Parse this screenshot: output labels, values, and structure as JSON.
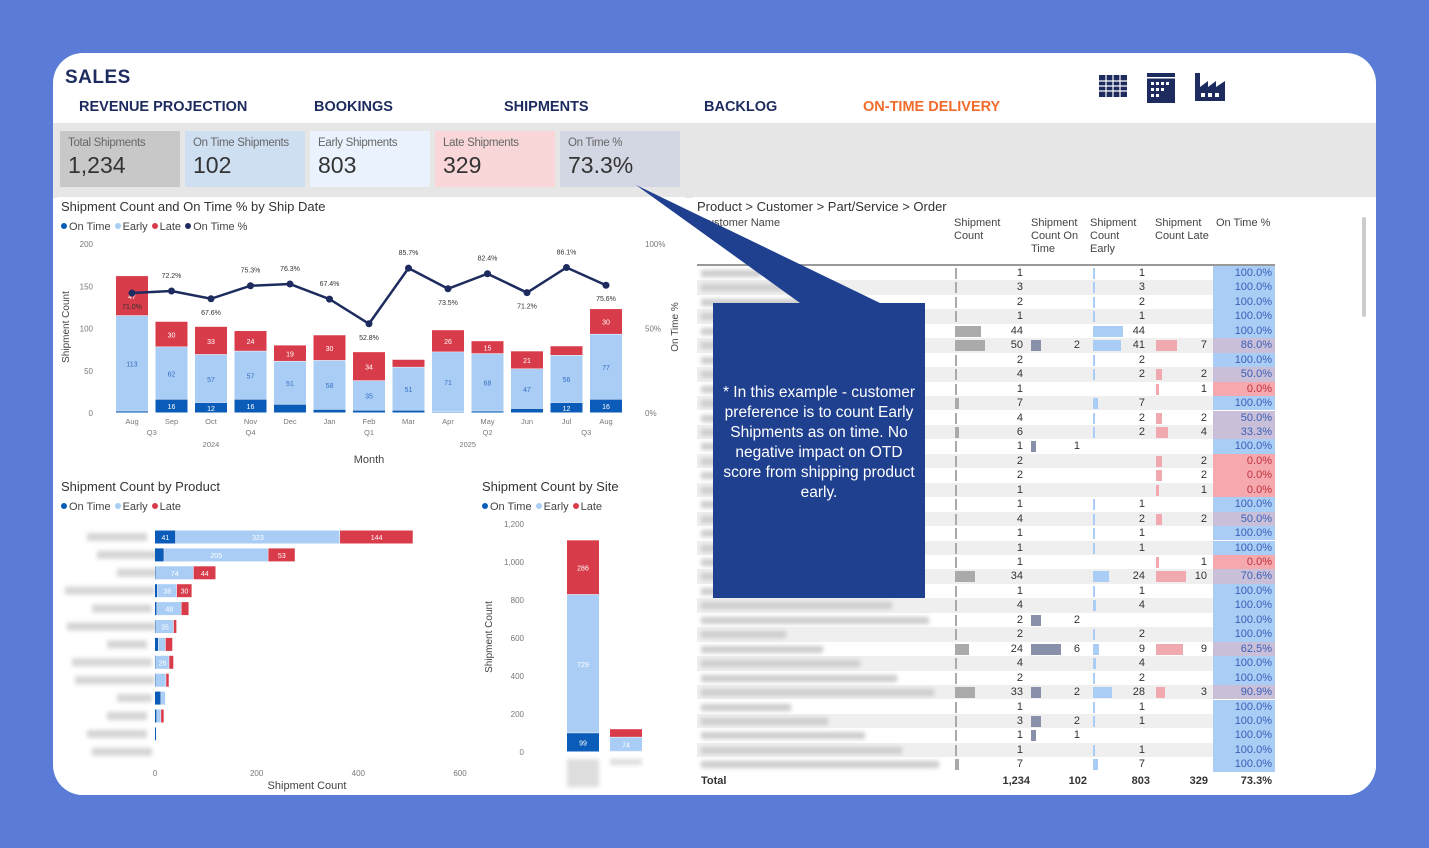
{
  "header": {
    "title": "SALES",
    "nav": [
      {
        "label": "REVENUE PROJECTION",
        "active": false
      },
      {
        "label": "BOOKINGS",
        "active": false
      },
      {
        "label": "SHIPMENTS",
        "active": false
      },
      {
        "label": "BACKLOG",
        "active": false
      },
      {
        "label": "ON-TIME DELIVERY",
        "active": true
      }
    ],
    "icons": [
      "table-icon",
      "calendar-icon",
      "factory-icon"
    ]
  },
  "kpis": [
    {
      "label": "Total Shipments",
      "value": "1,234",
      "color": "#c8c8c8"
    },
    {
      "label": "On Time Shipments",
      "value": "102",
      "color": "#cfdff2"
    },
    {
      "label": "Early Shipments",
      "value": "803",
      "color": "#eaf3fd"
    },
    {
      "label": "Late Shipments",
      "value": "329",
      "color": "#f9d6d8"
    },
    {
      "label": "On Time %",
      "value": "73.3%",
      "color": "#d3d6e3"
    }
  ],
  "colors": {
    "on_time": "#0b5cb8",
    "early": "#a9cdf5",
    "late": "#d83c4a",
    "on_time_pct": "#1d2b5e",
    "accent": "#f26b2a"
  },
  "chart_data": [
    {
      "type": "bar+line",
      "title": "Shipment Count and On Time % by Ship Date",
      "legend": [
        "On Time",
        "Early",
        "Late",
        "On Time %"
      ],
      "xlabel": "Month",
      "ylabel": "Shipment Count",
      "y2label": "On Time %",
      "ylim": [
        0,
        200
      ],
      "y2lim": [
        0,
        100
      ],
      "yticks": [
        "0",
        "50",
        "100",
        "150",
        "200"
      ],
      "y2ticks": [
        "0%",
        "50%",
        "100%"
      ],
      "categories": [
        "Aug",
        "Sep",
        "Oct",
        "Nov",
        "Dec",
        "Jan",
        "Feb",
        "Mar",
        "Apr",
        "May",
        "Jun",
        "Jul",
        "Aug"
      ],
      "quarters": [
        {
          "label": "Q3",
          "span": 2
        },
        {
          "label": "Q4",
          "span": 3
        },
        {
          "label": "Q1",
          "span": 3
        },
        {
          "label": "Q2",
          "span": 3
        },
        {
          "label": "Q3",
          "span": 2
        }
      ],
      "years": [
        {
          "label": "2024",
          "span": 5
        },
        {
          "label": "2025",
          "span": 8
        }
      ],
      "series": [
        {
          "name": "On Time",
          "values": [
            2,
            16,
            12,
            16,
            10,
            4,
            3,
            3,
            1,
            2,
            5,
            12,
            16
          ]
        },
        {
          "name": "Early",
          "values": [
            113,
            62,
            57,
            57,
            51,
            58,
            35,
            51,
            71,
            68,
            47,
            56,
            77
          ]
        },
        {
          "name": "Late",
          "values": [
            47,
            30,
            33,
            24,
            19,
            30,
            34,
            9,
            26,
            15,
            21,
            11,
            30
          ]
        },
        {
          "name": "On Time %",
          "values": [
            71.0,
            72.2,
            67.6,
            75.3,
            76.3,
            67.4,
            52.8,
            85.7,
            73.5,
            82.4,
            71.2,
            86.1,
            75.6
          ]
        }
      ]
    },
    {
      "type": "bar",
      "orientation": "horizontal",
      "title": "Shipment Count by Product",
      "legend": [
        "On Time",
        "Early",
        "Late"
      ],
      "xlabel": "Shipment Count",
      "xlim": [
        0,
        600
      ],
      "xticks": [
        "0",
        "200",
        "400",
        "600"
      ],
      "series": [
        {
          "name": "On Time",
          "values": [
            41,
            18,
            2,
            5,
            4,
            2,
            7,
            2,
            2,
            12,
            4,
            3,
            0
          ]
        },
        {
          "name": "Early",
          "values": [
            323,
            205,
            74,
            38,
            48,
            35,
            14,
            26,
            20,
            9,
            8,
            0,
            1
          ]
        },
        {
          "name": "Late",
          "values": [
            144,
            53,
            44,
            30,
            15,
            6,
            14,
            9,
            6,
            0,
            6,
            0,
            0
          ]
        }
      ]
    },
    {
      "type": "bar",
      "title": "Shipment Count by Site",
      "legend": [
        "On Time",
        "Early",
        "Late"
      ],
      "ylabel": "Shipment Count",
      "ylim": [
        0,
        1200
      ],
      "yticks": [
        "0",
        "200",
        "400",
        "600",
        "800",
        "1,000",
        "1,200"
      ],
      "series": [
        {
          "name": "On Time",
          "values": [
            99,
            3
          ]
        },
        {
          "name": "Early",
          "values": [
            729,
            74
          ]
        },
        {
          "name": "Late",
          "values": [
            286,
            43
          ]
        }
      ]
    }
  ],
  "table": {
    "title": "Product > Customer > Part/Service > Order",
    "columns": [
      "Customer Name",
      "Shipment Count",
      "Shipment Count On Time",
      "Shipment Count Early",
      "Shipment Count Late",
      "On Time %"
    ],
    "rows": [
      [
        1,
        "",
        1,
        "",
        "100.0%"
      ],
      [
        3,
        "",
        3,
        "",
        "100.0%"
      ],
      [
        2,
        "",
        2,
        "",
        "100.0%"
      ],
      [
        1,
        "",
        1,
        "",
        "100.0%"
      ],
      [
        44,
        "",
        44,
        "",
        "100.0%"
      ],
      [
        50,
        2,
        41,
        7,
        "86.0%"
      ],
      [
        2,
        "",
        2,
        "",
        "100.0%"
      ],
      [
        4,
        "",
        2,
        2,
        "50.0%"
      ],
      [
        1,
        "",
        "",
        1,
        "0.0%"
      ],
      [
        7,
        "",
        7,
        "",
        "100.0%"
      ],
      [
        4,
        "",
        2,
        2,
        "50.0%"
      ],
      [
        6,
        "",
        2,
        4,
        "33.3%"
      ],
      [
        1,
        1,
        "",
        "",
        "100.0%"
      ],
      [
        2,
        "",
        "",
        2,
        "0.0%"
      ],
      [
        2,
        "",
        "",
        2,
        "0.0%"
      ],
      [
        1,
        "",
        "",
        1,
        "0.0%"
      ],
      [
        1,
        "",
        1,
        "",
        "100.0%"
      ],
      [
        4,
        "",
        2,
        2,
        "50.0%"
      ],
      [
        1,
        "",
        1,
        "",
        "100.0%"
      ],
      [
        1,
        "",
        1,
        "",
        "100.0%"
      ],
      [
        1,
        "",
        "",
        1,
        "0.0%"
      ],
      [
        34,
        "",
        24,
        10,
        "70.6%"
      ],
      [
        1,
        "",
        1,
        "",
        "100.0%"
      ],
      [
        4,
        "",
        4,
        "",
        "100.0%"
      ],
      [
        2,
        2,
        "",
        "",
        "100.0%"
      ],
      [
        2,
        "",
        2,
        "",
        "100.0%"
      ],
      [
        24,
        6,
        9,
        9,
        "62.5%"
      ],
      [
        4,
        "",
        4,
        "",
        "100.0%"
      ],
      [
        2,
        "",
        2,
        "",
        "100.0%"
      ],
      [
        33,
        2,
        28,
        3,
        "90.9%"
      ],
      [
        1,
        "",
        1,
        "",
        "100.0%"
      ],
      [
        3,
        2,
        1,
        "",
        "100.0%"
      ],
      [
        1,
        1,
        "",
        "",
        "100.0%"
      ],
      [
        1,
        "",
        1,
        "",
        "100.0%"
      ],
      [
        7,
        "",
        7,
        "",
        "100.0%"
      ]
    ],
    "total": {
      "label": "Total",
      "values": [
        "1,234",
        "102",
        "803",
        "329",
        "73.3%"
      ]
    }
  },
  "callout": {
    "text": "* In this example - customer preference is to count Early Shipments as on time. No negative impact on OTD score from shipping product early."
  }
}
